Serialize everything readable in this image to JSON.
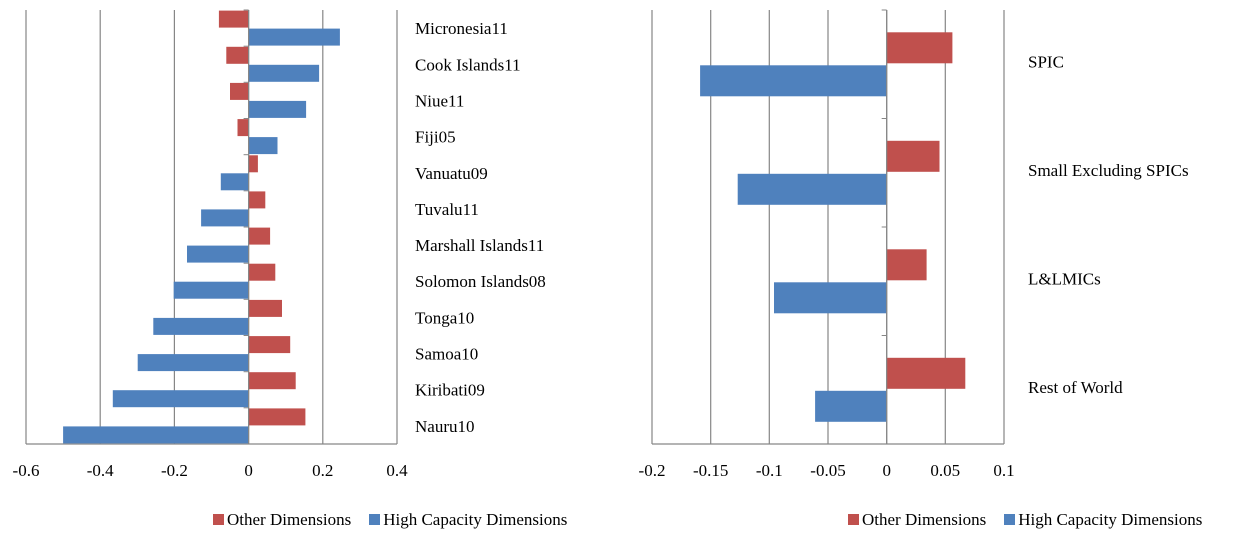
{
  "colors": {
    "other": "#C0504D",
    "high": "#4F81BD",
    "grid": "#868686",
    "axis": "#868686"
  },
  "chart_data": [
    {
      "type": "bar",
      "orientation": "horizontal",
      "title": "",
      "xlabel": "",
      "ylabel": "",
      "xlim": [
        -0.6,
        0.4
      ],
      "xticks": [
        -0.6,
        -0.4,
        -0.2,
        0,
        0.2,
        0.4
      ],
      "tick_labels": [
        "-0.6",
        "-0.4",
        "-0.2",
        "0",
        "0.2",
        "0.4"
      ],
      "grid": true,
      "legend_position": "bottom",
      "categories": [
        "Micronesia11",
        "Cook Islands11",
        "Niue11",
        "Fiji05",
        "Vanuatu09",
        "Tuvalu11",
        "Marshall Islands11",
        "Solomon Islands08",
        "Tonga10",
        "Samoa10",
        "Kiribati09",
        "Nauru10"
      ],
      "series": [
        {
          "name": "Other Dimensions",
          "values": [
            -0.08,
            -0.06,
            -0.05,
            -0.03,
            0.025,
            0.045,
            0.058,
            0.072,
            0.09,
            0.112,
            0.127,
            0.153
          ]
        },
        {
          "name": "High Capacity Dimensions",
          "values": [
            0.246,
            0.19,
            0.155,
            0.078,
            -0.075,
            -0.128,
            -0.166,
            -0.202,
            -0.257,
            -0.299,
            -0.366,
            -0.5
          ]
        }
      ]
    },
    {
      "type": "bar",
      "orientation": "horizontal",
      "title": "",
      "xlabel": "",
      "ylabel": "",
      "xlim": [
        -0.2,
        0.1
      ],
      "xticks": [
        -0.2,
        -0.15,
        -0.1,
        -0.05,
        0,
        0.05,
        0.1
      ],
      "tick_labels": [
        "-0.2",
        "-0.15",
        "-0.1",
        "-0.05",
        "0",
        "0.05",
        "0.1"
      ],
      "grid": true,
      "legend_position": "bottom",
      "categories": [
        "SPIC",
        "Small Excluding SPICs",
        "L&LMICs",
        "Rest of World"
      ],
      "series": [
        {
          "name": "Other Dimensions",
          "values": [
            0.056,
            0.045,
            0.034,
            0.067
          ]
        },
        {
          "name": "High Capacity Dimensions",
          "values": [
            -0.159,
            -0.127,
            -0.096,
            -0.061
          ]
        }
      ]
    }
  ]
}
